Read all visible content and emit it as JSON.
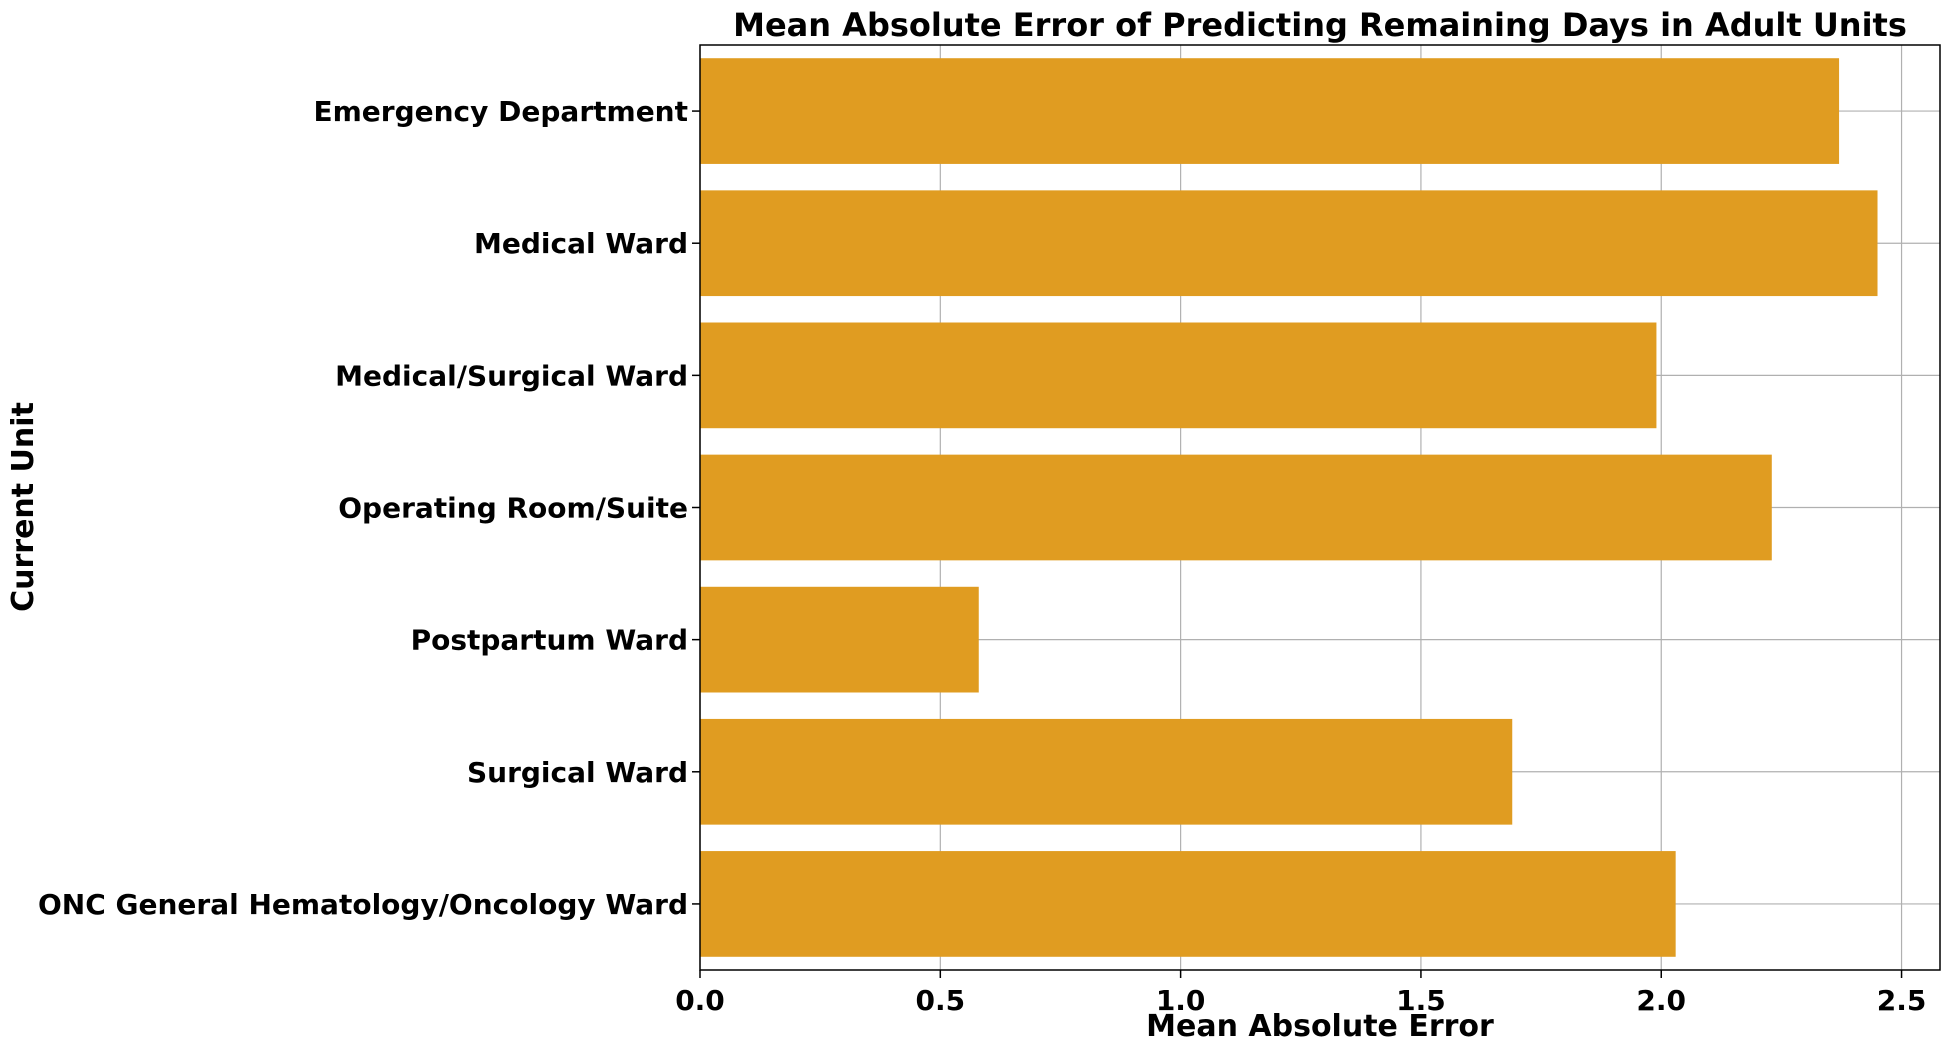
{
  "colors": {
    "bar": "#e09c21",
    "grid": "#b0b0b0",
    "axis": "#000000",
    "background": "#ffffff"
  },
  "chart_data": {
    "type": "bar",
    "orientation": "horizontal",
    "title": "Mean Absolute Error of Predicting Remaining Days in Adult Units",
    "xlabel": "Mean Absolute Error",
    "ylabel": "Current Unit",
    "categories": [
      "Emergency Department",
      "Medical Ward",
      "Medical/Surgical Ward",
      "Operating Room/Suite",
      "Postpartum Ward",
      "Surgical Ward",
      "ONC General Hematology/Oncology Ward"
    ],
    "values": [
      2.37,
      2.45,
      1.99,
      2.23,
      0.58,
      1.69,
      2.03
    ],
    "xlim": [
      0,
      2.58
    ],
    "xticks": [
      "0.0",
      "0.5",
      "1.0",
      "1.5",
      "2.0",
      "2.5"
    ],
    "grid": true,
    "legend": "none"
  }
}
